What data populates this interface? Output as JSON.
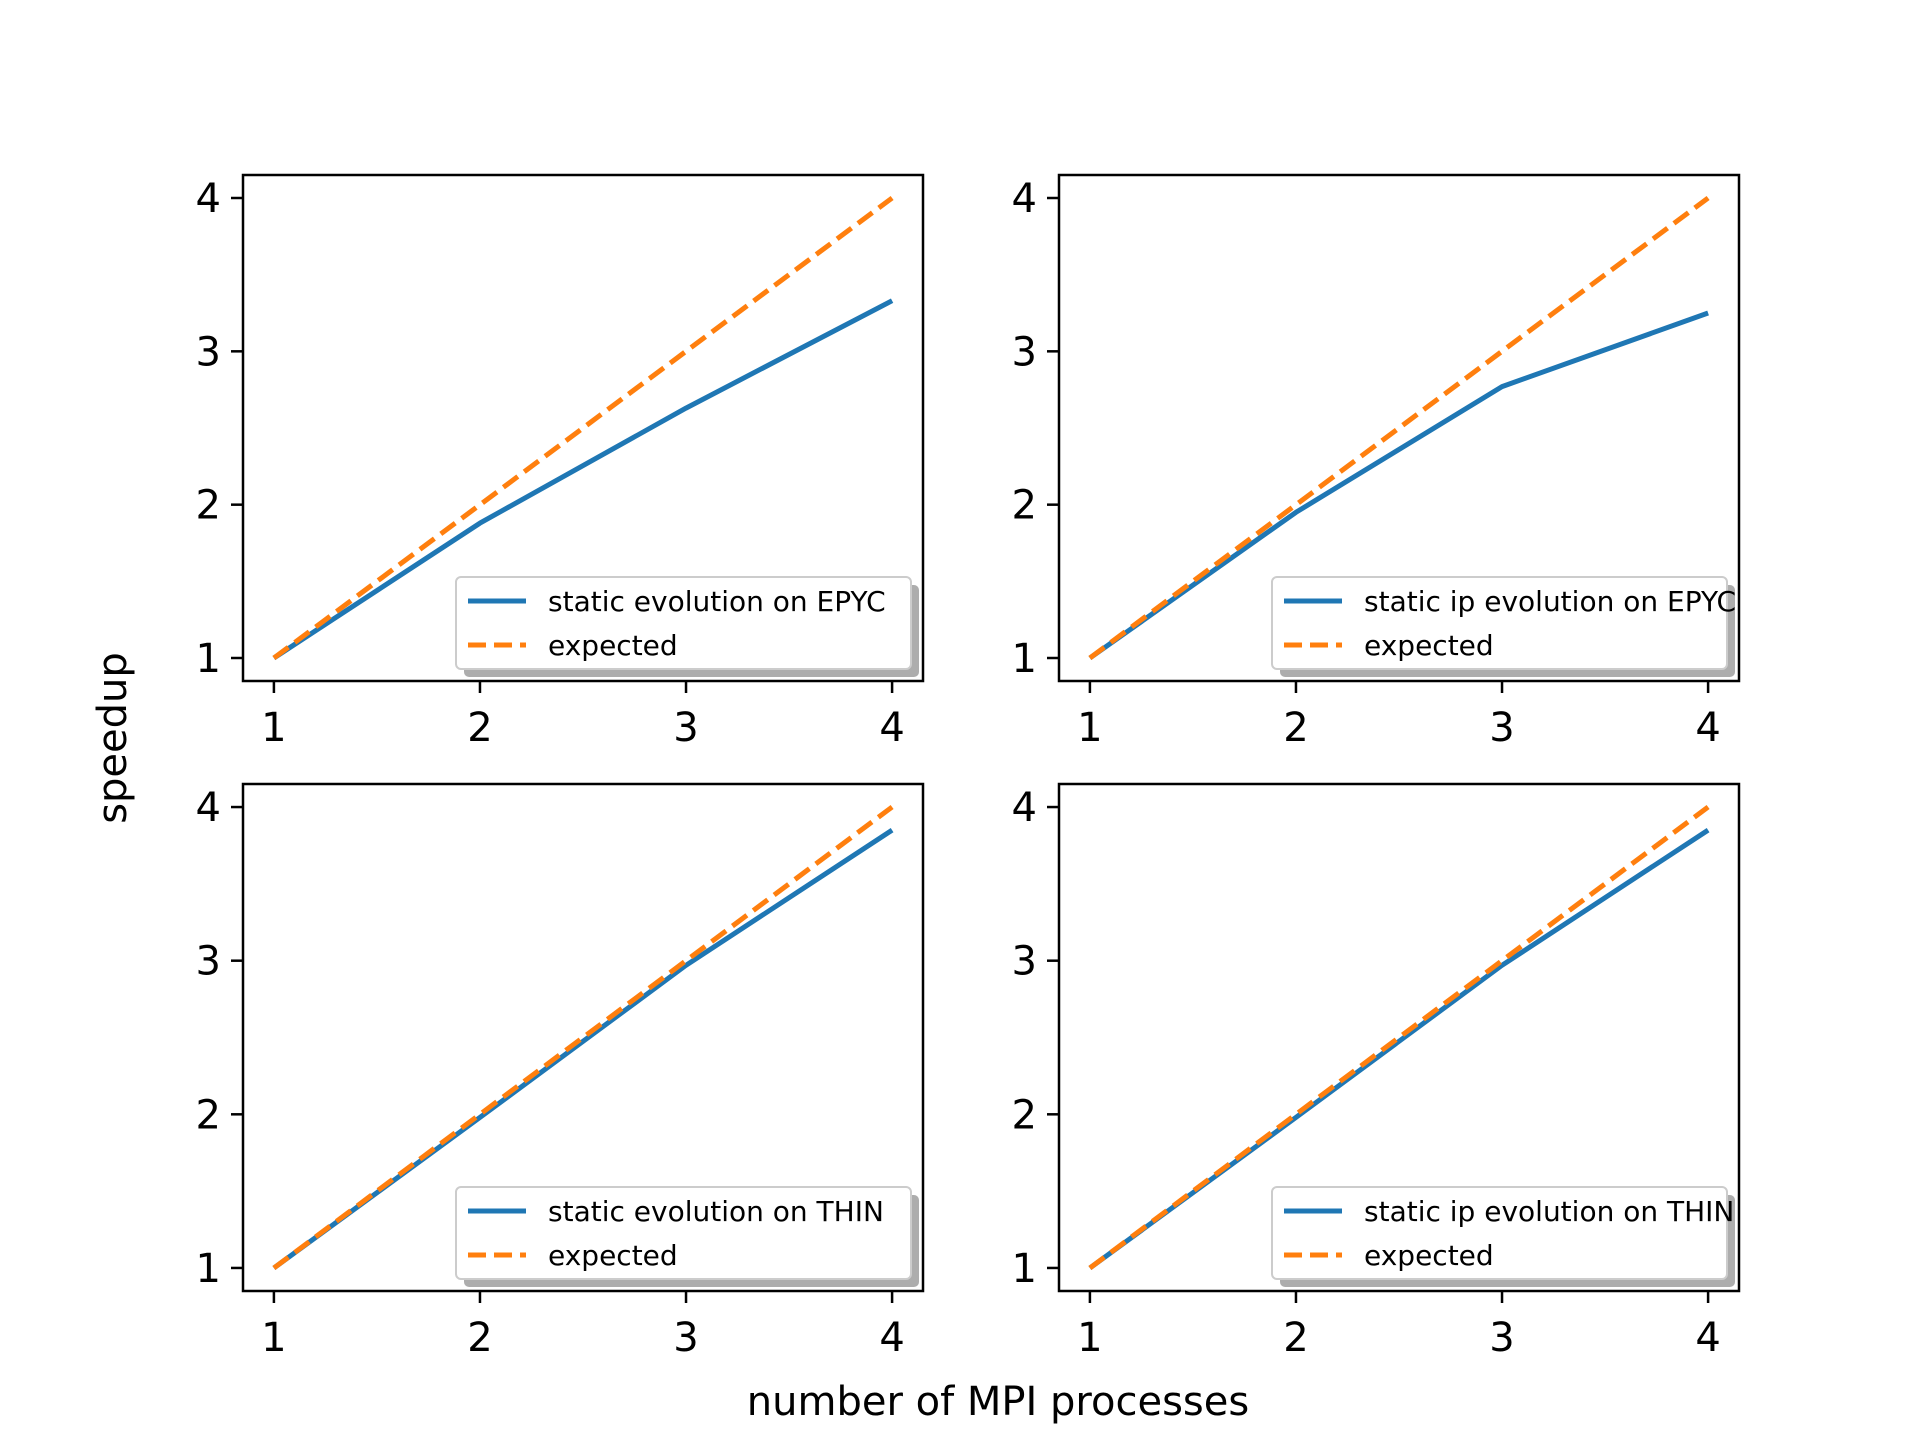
{
  "figure": {
    "xlabel": "number of MPI processes",
    "ylabel": "speedup"
  },
  "colors": {
    "measured": "#1f77b4",
    "expected": "#ff7f0e"
  },
  "chart_data": [
    {
      "type": "line",
      "x": [
        1,
        2,
        3,
        4
      ],
      "xticks": [
        "1",
        "2",
        "3",
        "4"
      ],
      "yticks": [
        "1",
        "2",
        "3",
        "4"
      ],
      "xlim": [
        0.85,
        4.15
      ],
      "ylim": [
        0.85,
        4.15
      ],
      "legend_position": "lower-right",
      "series": [
        {
          "name": "static evolution on EPYC",
          "values": [
            1.0,
            1.88,
            2.63,
            3.33
          ],
          "style": "solid",
          "color": "#1f77b4"
        },
        {
          "name": "expected",
          "values": [
            1,
            2,
            3,
            4
          ],
          "style": "dashed",
          "color": "#ff7f0e"
        }
      ]
    },
    {
      "type": "line",
      "x": [
        1,
        2,
        3,
        4
      ],
      "xticks": [
        "1",
        "2",
        "3",
        "4"
      ],
      "yticks": [
        "1",
        "2",
        "3",
        "4"
      ],
      "xlim": [
        0.85,
        4.15
      ],
      "ylim": [
        0.85,
        4.15
      ],
      "legend_position": "lower-right",
      "series": [
        {
          "name": "static ip evolution on EPYC",
          "values": [
            1.0,
            1.95,
            2.77,
            3.25
          ],
          "style": "solid",
          "color": "#1f77b4"
        },
        {
          "name": "expected",
          "values": [
            1,
            2,
            3,
            4
          ],
          "style": "dashed",
          "color": "#ff7f0e"
        }
      ]
    },
    {
      "type": "line",
      "x": [
        1,
        2,
        3,
        4
      ],
      "xticks": [
        "1",
        "2",
        "3",
        "4"
      ],
      "yticks": [
        "1",
        "2",
        "3",
        "4"
      ],
      "xlim": [
        0.85,
        4.15
      ],
      "ylim": [
        0.85,
        4.15
      ],
      "legend_position": "lower-right",
      "series": [
        {
          "name": "static evolution on THIN",
          "values": [
            1.0,
            1.98,
            2.97,
            3.85
          ],
          "style": "solid",
          "color": "#1f77b4"
        },
        {
          "name": "expected",
          "values": [
            1,
            2,
            3,
            4
          ],
          "style": "dashed",
          "color": "#ff7f0e"
        }
      ]
    },
    {
      "type": "line",
      "x": [
        1,
        2,
        3,
        4
      ],
      "xticks": [
        "1",
        "2",
        "3",
        "4"
      ],
      "yticks": [
        "1",
        "2",
        "3",
        "4"
      ],
      "xlim": [
        0.85,
        4.15
      ],
      "ylim": [
        0.85,
        4.15
      ],
      "legend_position": "lower-right",
      "series": [
        {
          "name": "static ip evolution on THIN",
          "values": [
            1.0,
            1.98,
            2.97,
            3.85
          ],
          "style": "solid",
          "color": "#1f77b4"
        },
        {
          "name": "expected",
          "values": [
            1,
            2,
            3,
            4
          ],
          "style": "dashed",
          "color": "#ff7f0e"
        }
      ]
    }
  ]
}
